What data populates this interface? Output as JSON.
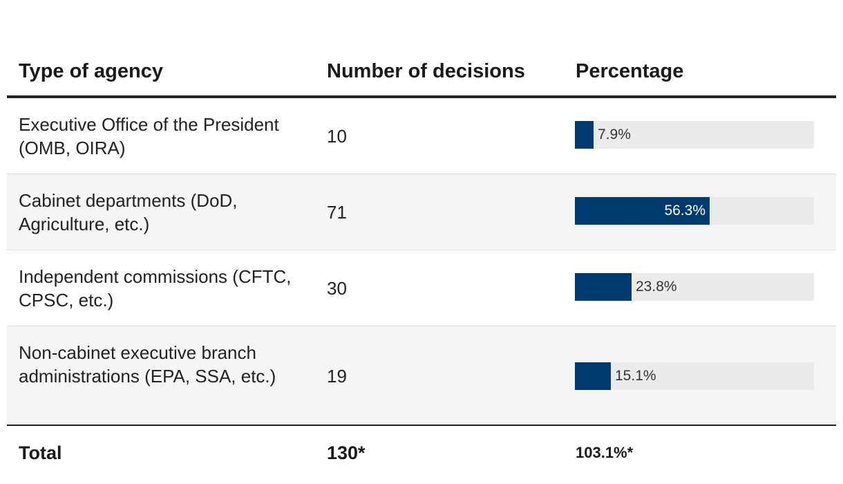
{
  "chart_data": {
    "type": "table",
    "columns": [
      "Type of agency",
      "Number of decisions",
      "Percentage"
    ],
    "rows": [
      {
        "type": "Executive Office of the President (OMB, OIRA)",
        "number": "10",
        "percentage": 7.9,
        "percentage_label": "7.9%"
      },
      {
        "type": "Cabinet departments (DoD, Agriculture, etc.)",
        "number": "71",
        "percentage": 56.3,
        "percentage_label": "56.3%"
      },
      {
        "type": "Independent commissions (CFTC, CPSC, etc.)",
        "number": "30",
        "percentage": 23.8,
        "percentage_label": "23.8%"
      },
      {
        "type": "Non-cabinet executive branch administrations (EPA, SSA, etc.)",
        "number": "19",
        "percentage": 15.1,
        "percentage_label": "15.1%"
      }
    ],
    "total": {
      "label": "Total",
      "number": "130*",
      "percentage": "103.1%*"
    },
    "bar_max": 100,
    "bar_color": "#003a70",
    "track_color": "#ebebeb"
  }
}
